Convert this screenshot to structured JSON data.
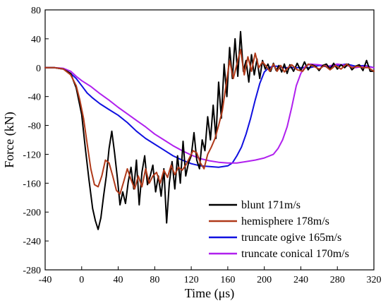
{
  "chart_data": {
    "type": "line",
    "xlabel": "Time (μs)",
    "ylabel": "Force (kN)",
    "xlim": [
      -40,
      320
    ],
    "ylim": [
      -280,
      80
    ],
    "xticks": [
      -40,
      0,
      40,
      80,
      120,
      160,
      200,
      240,
      280,
      320
    ],
    "yticks": [
      80,
      40,
      0,
      -40,
      -80,
      -120,
      -160,
      -200,
      -240,
      -280
    ],
    "grid": false,
    "legend_position": "bottom-right",
    "series": [
      {
        "name": "blunt 171m/s",
        "color": "#000000",
        "x": [
          -40,
          -30,
          -20,
          -12,
          -6,
          0,
          4,
          8,
          12,
          15,
          18,
          21,
          24,
          27,
          30,
          33,
          36,
          39,
          42,
          45,
          48,
          51,
          54,
          57,
          60,
          63,
          66,
          69,
          72,
          75,
          78,
          81,
          84,
          87,
          90,
          93,
          96,
          99,
          102,
          105,
          108,
          111,
          114,
          117,
          120,
          123,
          126,
          129,
          132,
          135,
          138,
          141,
          144,
          147,
          150,
          153,
          156,
          159,
          162,
          165,
          168,
          171,
          174,
          177,
          180,
          183,
          186,
          189,
          192,
          195,
          198,
          201,
          204,
          207,
          210,
          213,
          216,
          219,
          222,
          225,
          228,
          232,
          236,
          240,
          244,
          248,
          252,
          256,
          260,
          264,
          268,
          272,
          276,
          280,
          284,
          288,
          292,
          296,
          300,
          304,
          308,
          312,
          316,
          320
        ],
        "y": [
          0,
          0,
          -2,
          -8,
          -28,
          -65,
          -112,
          -155,
          -195,
          -212,
          -224,
          -208,
          -178,
          -150,
          -112,
          -88,
          -118,
          -152,
          -190,
          -172,
          -188,
          -158,
          -138,
          -168,
          -128,
          -190,
          -145,
          -122,
          -162,
          -150,
          -135,
          -172,
          -150,
          -178,
          -140,
          -215,
          -160,
          -130,
          -168,
          -122,
          -160,
          -102,
          -150,
          -132,
          -122,
          -90,
          -128,
          -140,
          -100,
          -115,
          -68,
          -100,
          -52,
          -98,
          -20,
          -70,
          5,
          -40,
          28,
          -15,
          40,
          -12,
          50,
          -5,
          10,
          -20,
          18,
          -10,
          12,
          -15,
          10,
          -2,
          5,
          -5,
          6,
          -4,
          3,
          -6,
          5,
          -8,
          4,
          -5,
          6,
          -4,
          8,
          -3,
          4,
          2,
          -4,
          3,
          5,
          -2,
          6,
          -2,
          4,
          0,
          5,
          -3,
          2,
          4,
          -4,
          10,
          -5,
          -5
        ]
      },
      {
        "name": "hemisphere 178m/s",
        "color": "#b03a1a",
        "x": [
          -40,
          -30,
          -20,
          -12,
          -6,
          -2,
          2,
          6,
          10,
          14,
          18,
          22,
          26,
          30,
          34,
          38,
          42,
          46,
          50,
          54,
          58,
          62,
          66,
          70,
          74,
          78,
          82,
          86,
          90,
          94,
          98,
          102,
          106,
          110,
          114,
          118,
          122,
          126,
          130,
          134,
          138,
          142,
          146,
          150,
          154,
          158,
          162,
          166,
          170,
          174,
          178,
          182,
          186,
          190,
          194,
          198,
          202,
          206,
          210,
          214,
          218,
          222,
          226,
          230,
          236,
          242,
          248,
          254,
          260,
          266,
          272,
          278,
          284,
          290,
          296,
          302,
          308,
          314,
          320
        ],
        "y": [
          0,
          0,
          -2,
          -10,
          -25,
          -45,
          -70,
          -105,
          -140,
          -162,
          -165,
          -150,
          -128,
          -132,
          -150,
          -170,
          -175,
          -158,
          -140,
          -155,
          -168,
          -150,
          -165,
          -140,
          -160,
          -150,
          -145,
          -160,
          -142,
          -152,
          -135,
          -148,
          -138,
          -142,
          -135,
          -125,
          -115,
          -118,
          -132,
          -140,
          -120,
          -110,
          -98,
          -80,
          -60,
          -25,
          10,
          -15,
          5,
          25,
          -10,
          15,
          -5,
          20,
          0,
          8,
          2,
          -5,
          5,
          -5,
          3,
          -6,
          0,
          4,
          -3,
          -5,
          5,
          2,
          -2,
          3,
          -3,
          3,
          -2,
          5,
          0,
          2,
          0,
          0,
          -5
        ]
      },
      {
        "name": "truncate ogive 165m/s",
        "color": "#1010e0",
        "x": [
          -40,
          -30,
          -20,
          -12,
          -6,
          0,
          6,
          12,
          20,
          30,
          40,
          50,
          60,
          70,
          80,
          90,
          100,
          110,
          120,
          130,
          140,
          150,
          160,
          165,
          170,
          175,
          180,
          185,
          190,
          195,
          200,
          205,
          210,
          215,
          220,
          230,
          240,
          250,
          260,
          270,
          280,
          290,
          300,
          310,
          320
        ],
        "y": [
          0,
          0,
          -2,
          -8,
          -15,
          -25,
          -35,
          -42,
          -50,
          -58,
          -66,
          -76,
          -88,
          -98,
          -106,
          -114,
          -122,
          -128,
          -133,
          -136,
          -137,
          -138,
          -136,
          -132,
          -122,
          -110,
          -92,
          -70,
          -45,
          -22,
          -6,
          0,
          2,
          2,
          0,
          0,
          0,
          0,
          3,
          1,
          3,
          5,
          2,
          3,
          0
        ]
      },
      {
        "name": "truncate conical 170m/s",
        "color": "#b020ee",
        "x": [
          -40,
          -30,
          -20,
          -12,
          -6,
          0,
          10,
          20,
          30,
          40,
          50,
          60,
          70,
          80,
          90,
          100,
          110,
          120,
          130,
          140,
          150,
          160,
          170,
          180,
          190,
          200,
          210,
          215,
          220,
          225,
          230,
          235,
          240,
          245,
          250,
          260,
          270,
          280,
          290,
          300,
          310,
          320
        ],
        "y": [
          0,
          0,
          -1,
          -5,
          -12,
          -18,
          -26,
          -36,
          -45,
          -55,
          -64,
          -73,
          -82,
          -92,
          -100,
          -108,
          -115,
          -121,
          -126,
          -129,
          -131,
          -132,
          -132,
          -130,
          -128,
          -125,
          -120,
          -112,
          -100,
          -82,
          -55,
          -25,
          -8,
          2,
          5,
          4,
          2,
          5,
          3,
          0,
          2,
          0
        ]
      }
    ]
  }
}
